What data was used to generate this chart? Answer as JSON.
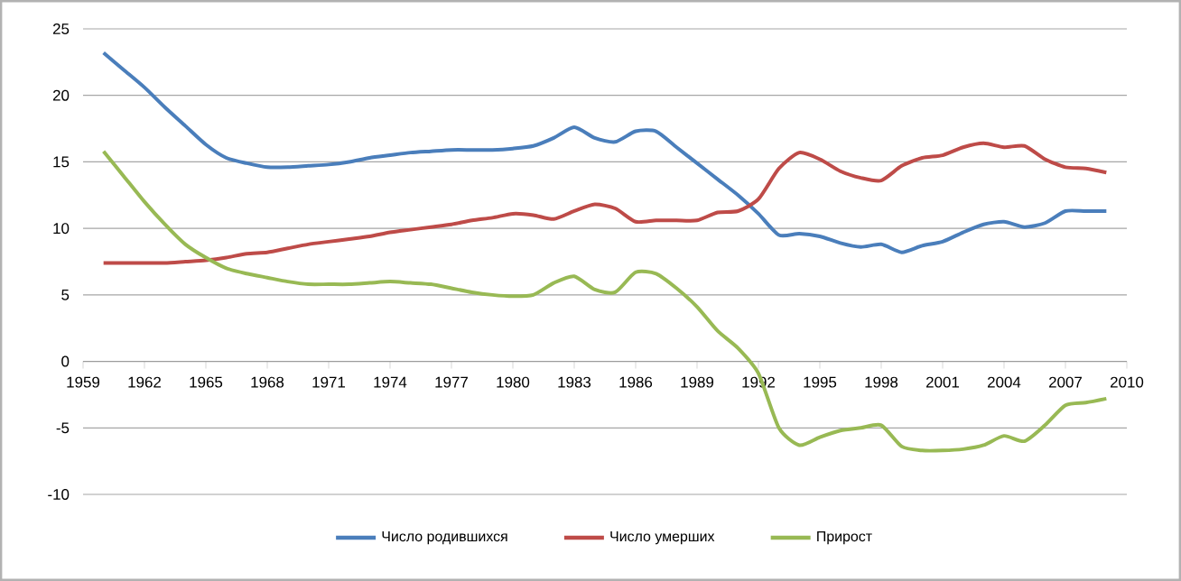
{
  "chart_data": {
    "type": "line",
    "x": [
      1960,
      1961,
      1962,
      1963,
      1964,
      1965,
      1966,
      1967,
      1968,
      1969,
      1970,
      1971,
      1972,
      1973,
      1974,
      1975,
      1976,
      1977,
      1978,
      1979,
      1980,
      1981,
      1982,
      1983,
      1984,
      1985,
      1986,
      1987,
      1988,
      1989,
      1990,
      1991,
      1992,
      1993,
      1994,
      1995,
      1996,
      1997,
      1998,
      1999,
      2000,
      2001,
      2002,
      2003,
      2004,
      2005,
      2006,
      2007,
      2008,
      2009
    ],
    "series": [
      {
        "name": "Число родившихся",
        "color": "#4a7ebb",
        "values": [
          23.2,
          21.9,
          20.6,
          19.1,
          17.7,
          16.3,
          15.3,
          14.9,
          14.6,
          14.6,
          14.7,
          14.8,
          15.0,
          15.3,
          15.5,
          15.7,
          15.8,
          15.9,
          15.9,
          15.9,
          16.0,
          16.2,
          16.8,
          17.6,
          16.8,
          16.5,
          17.3,
          17.3,
          16.1,
          14.9,
          13.7,
          12.5,
          11.1,
          9.5,
          9.6,
          9.4,
          8.9,
          8.6,
          8.8,
          8.2,
          8.7,
          9.0,
          9.7,
          10.3,
          10.5,
          10.1,
          10.4,
          11.3,
          11.3,
          11.3
        ]
      },
      {
        "name": "Число умерших",
        "color": "#be4b48",
        "values": [
          7.4,
          7.4,
          7.4,
          7.4,
          7.5,
          7.6,
          7.8,
          8.1,
          8.2,
          8.5,
          8.8,
          9.0,
          9.2,
          9.4,
          9.7,
          9.9,
          10.1,
          10.3,
          10.6,
          10.8,
          11.1,
          11.0,
          10.7,
          11.3,
          11.8,
          11.5,
          10.5,
          10.6,
          10.6,
          10.6,
          11.2,
          11.3,
          12.2,
          14.5,
          15.7,
          15.2,
          14.3,
          13.8,
          13.6,
          14.7,
          15.3,
          15.5,
          16.1,
          16.4,
          16.1,
          16.2,
          15.2,
          14.6,
          14.5,
          14.2
        ]
      },
      {
        "name": "Прирост",
        "color": "#98b954",
        "values": [
          15.8,
          13.9,
          12.0,
          10.3,
          8.8,
          7.8,
          7.0,
          6.6,
          6.3,
          6.0,
          5.8,
          5.8,
          5.8,
          5.9,
          6.0,
          5.9,
          5.8,
          5.5,
          5.2,
          5.0,
          4.9,
          5.0,
          5.9,
          6.4,
          5.4,
          5.2,
          6.7,
          6.6,
          5.5,
          4.1,
          2.3,
          1.0,
          -0.9,
          -5.0,
          -6.3,
          -5.7,
          -5.2,
          -5.0,
          -4.8,
          -6.4,
          -6.7,
          -6.7,
          -6.6,
          -6.3,
          -5.6,
          -6.0,
          -4.8,
          -3.3,
          -3.1,
          -2.8
        ]
      }
    ],
    "xlim": [
      1959,
      2010
    ],
    "xticks": [
      1959,
      1962,
      1965,
      1968,
      1971,
      1974,
      1977,
      1980,
      1983,
      1986,
      1989,
      1992,
      1995,
      1998,
      2001,
      2004,
      2007,
      2010
    ],
    "ylim": [
      -10,
      25
    ],
    "yticks": [
      -10,
      -5,
      0,
      5,
      10,
      15,
      20,
      25
    ],
    "grid": "y",
    "legend": "bottom",
    "marker": "none",
    "line_style": "solid"
  }
}
